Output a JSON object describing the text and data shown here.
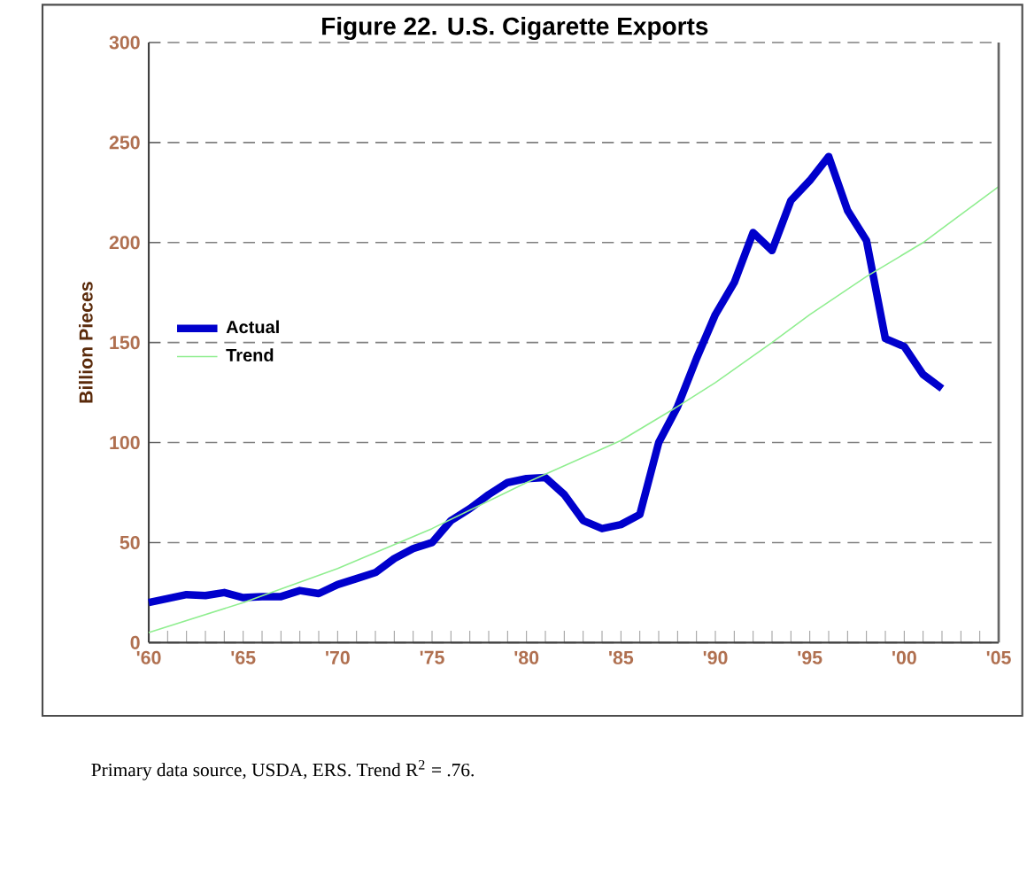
{
  "chart_data": {
    "type": "line",
    "title": "Figure 22.  U.S. Cigarette Exports",
    "ylabel": "Billion Pieces",
    "annotations": [
      "Primary data source, USDA, ERS.  Trend R$^{2}$ = .76."
    ],
    "series": [
      {
        "name": "Actual",
        "color": "#0000cc",
        "x": [
          1960,
          1961,
          1962,
          1963,
          1964,
          1965,
          1966,
          1967,
          1968,
          1969,
          1970,
          1971,
          1972,
          1973,
          1974,
          1975,
          1976,
          1977,
          1978,
          1979,
          1980,
          1981,
          1982,
          1983,
          1984,
          1985,
          1986,
          1987,
          1988,
          1989,
          1990,
          1991,
          1992,
          1993,
          1994,
          1995,
          1996,
          1997,
          1998,
          1999,
          2000,
          2001,
          2002
        ],
        "values": [
          20,
          22,
          24,
          23.5,
          25,
          22.5,
          23,
          23,
          26,
          24.5,
          29,
          32,
          35,
          42,
          47,
          50,
          61,
          67,
          74,
          80,
          82,
          82.5,
          74,
          61,
          57,
          59,
          64,
          100,
          118,
          142,
          164,
          180,
          205,
          196,
          221,
          231,
          243,
          216,
          201,
          152,
          148,
          134,
          127
        ]
      },
      {
        "name": "Trend",
        "color": "#90ee90",
        "x": [
          1960,
          1965,
          1970,
          1975,
          1980,
          1985,
          1988,
          1990,
          1993,
          1995,
          1998,
          2001,
          2005
        ],
        "values": [
          5,
          20,
          37,
          57,
          80,
          101,
          118,
          130,
          150,
          164,
          183,
          200,
          228
        ]
      }
    ],
    "xlim": [
      1960,
      2005
    ],
    "xticks": [
      {
        "value": 1960,
        "label": "'60"
      },
      {
        "value": 1961,
        "label": null
      },
      {
        "value": 1962,
        "label": null
      },
      {
        "value": 1963,
        "label": null
      },
      {
        "value": 1964,
        "label": null
      },
      {
        "value": 1965,
        "label": "'65"
      },
      {
        "value": 1966,
        "label": null
      },
      {
        "value": 1967,
        "label": null
      },
      {
        "value": 1968,
        "label": null
      },
      {
        "value": 1969,
        "label": null
      },
      {
        "value": 1970,
        "label": "'70"
      },
      {
        "value": 1971,
        "label": null
      },
      {
        "value": 1972,
        "label": null
      },
      {
        "value": 1973,
        "label": null
      },
      {
        "value": 1974,
        "label": null
      },
      {
        "value": 1975,
        "label": "'75"
      },
      {
        "value": 1976,
        "label": null
      },
      {
        "value": 1977,
        "label": null
      },
      {
        "value": 1978,
        "label": null
      },
      {
        "value": 1979,
        "label": null
      },
      {
        "value": 1980,
        "label": "'80"
      },
      {
        "value": 1981,
        "label": null
      },
      {
        "value": 1982,
        "label": null
      },
      {
        "value": 1983,
        "label": null
      },
      {
        "value": 1984,
        "label": null
      },
      {
        "value": 1985,
        "label": "'85"
      },
      {
        "value": 1986,
        "label": null
      },
      {
        "value": 1987,
        "label": null
      },
      {
        "value": 1988,
        "label": null
      },
      {
        "value": 1989,
        "label": null
      },
      {
        "value": 1990,
        "label": "'90"
      },
      {
        "value": 1991,
        "label": null
      },
      {
        "value": 1992,
        "label": null
      },
      {
        "value": 1993,
        "label": null
      },
      {
        "value": 1994,
        "label": null
      },
      {
        "value": 1995,
        "label": "'95"
      },
      {
        "value": 1996,
        "label": null
      },
      {
        "value": 1997,
        "label": null
      },
      {
        "value": 1998,
        "label": null
      },
      {
        "value": 1999,
        "label": null
      },
      {
        "value": 2000,
        "label": "'00"
      },
      {
        "value": 2001,
        "label": null
      },
      {
        "value": 2002,
        "label": null
      },
      {
        "value": 2003,
        "label": null
      },
      {
        "value": 2004,
        "label": null
      },
      {
        "value": 2005,
        "label": "'05"
      }
    ],
    "ylim": [
      0,
      300
    ],
    "yticks": [
      0,
      50,
      100,
      150,
      200,
      250,
      300
    ],
    "grid": "y",
    "legend": "left",
    "marker": "none",
    "line_style": "solid"
  }
}
